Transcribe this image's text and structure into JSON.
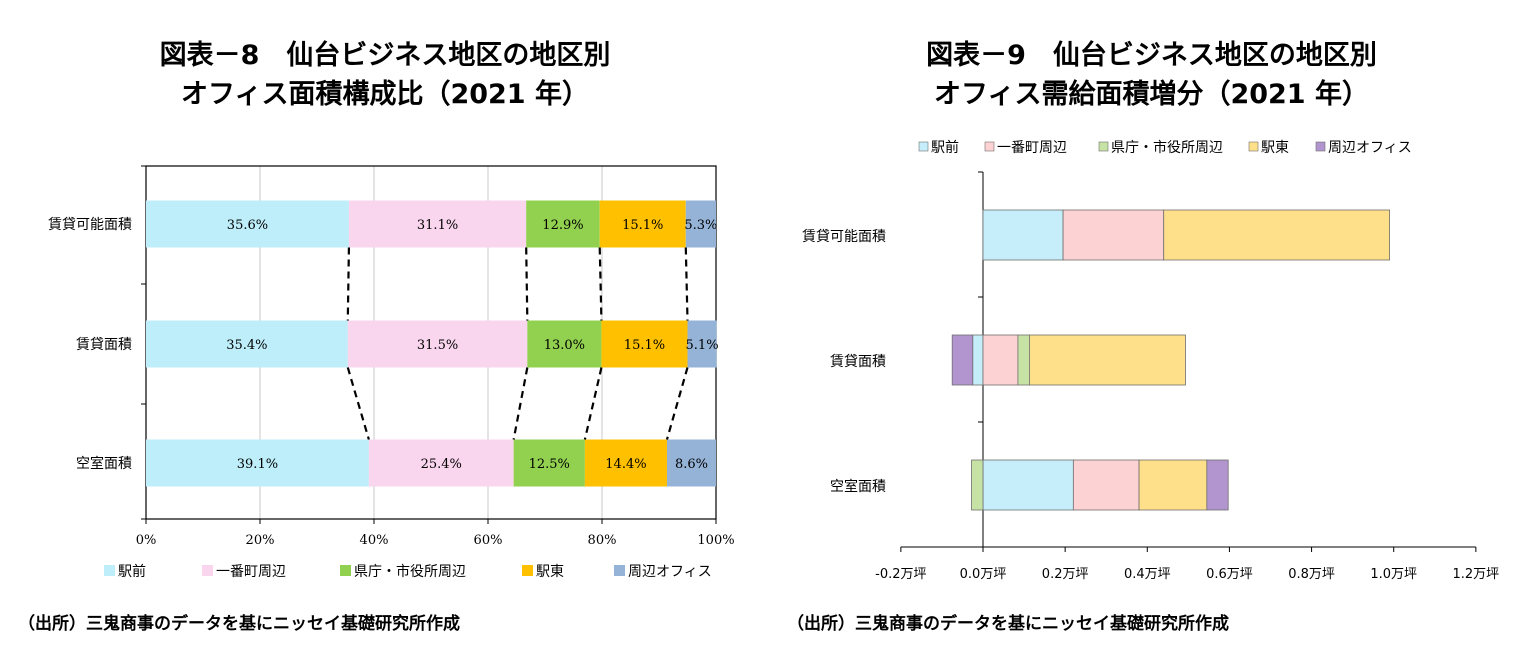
{
  "titles": {
    "chart1": {
      "line1": "図表－8　仙台ビジネス地区の地区別",
      "line2": "オフィス面積構成比（2021 年）"
    },
    "chart2": {
      "line1": "図表－9　仙台ビジネス地区の地区別",
      "line2": "オフィス需給面積増分（2021 年）"
    }
  },
  "sources": {
    "chart1": "（出所）三鬼商事のデータを基にニッセイ基礎研究所作成",
    "chart2": "（出所）三鬼商事のデータを基にニッセイ基礎研究所作成"
  },
  "colors": {
    "chart1": [
      "#bdeefa",
      "#f9d5ee",
      "#92d050",
      "#ffc000",
      "#95b3d7"
    ],
    "chart2": [
      "#c6eefa",
      "#fdd2d2",
      "#c6e3a5",
      "#ffe08a",
      "#b294cf"
    ]
  },
  "chart_data": [
    {
      "type": "bar",
      "orientation": "horizontal",
      "stacked": "percent",
      "categories": [
        "賃貸可能面積",
        "賃貸面積",
        "空室面積"
      ],
      "series": [
        {
          "name": "駅前",
          "values": [
            35.6,
            35.4,
            39.1
          ]
        },
        {
          "name": "一番町周辺",
          "values": [
            31.1,
            31.5,
            25.4
          ]
        },
        {
          "name": "県庁・市役所周辺",
          "values": [
            12.9,
            13.0,
            12.5
          ]
        },
        {
          "name": "駅東",
          "values": [
            15.1,
            15.1,
            14.4
          ]
        },
        {
          "name": "周辺オフィス",
          "values": [
            5.3,
            5.1,
            8.6
          ]
        }
      ],
      "value_labels": [
        [
          "35.6%",
          "31.1%",
          "12.9%",
          "15.1%",
          "5.3%"
        ],
        [
          "35.4%",
          "31.5%",
          "13.0%",
          "15.1%",
          "5.1%"
        ],
        [
          "39.1%",
          "25.4%",
          "12.5%",
          "14.4%",
          "8.6%"
        ]
      ],
      "xticks": [
        "0%",
        "20%",
        "40%",
        "60%",
        "80%",
        "100%"
      ],
      "xlim": [
        0,
        100
      ],
      "grid": true,
      "legend": "bottom"
    },
    {
      "type": "bar",
      "orientation": "horizontal",
      "stacked": true,
      "unit": "万坪",
      "categories": [
        "賃貸可能面積",
        "賃貸面積",
        "空室面積"
      ],
      "series": [
        {
          "name": "駅前",
          "values": [
            0.195,
            -0.025,
            0.22
          ]
        },
        {
          "name": "一番町周辺",
          "values": [
            0.245,
            0.085,
            0.16
          ]
        },
        {
          "name": "県庁・市役所周辺",
          "values": [
            0.0,
            0.028,
            -0.028
          ]
        },
        {
          "name": "駅東",
          "values": [
            0.55,
            0.38,
            0.165
          ]
        },
        {
          "name": "周辺オフィス",
          "values": [
            0.0,
            -0.05,
            0.052
          ]
        }
      ],
      "xticks": [
        "-0.2万坪",
        "0.0万坪",
        "0.2万坪",
        "0.4万坪",
        "0.6万坪",
        "0.8万坪",
        "1.0万坪",
        "1.2万坪"
      ],
      "xlim": [
        -0.2,
        1.2
      ],
      "grid": false,
      "legend": "top"
    }
  ]
}
